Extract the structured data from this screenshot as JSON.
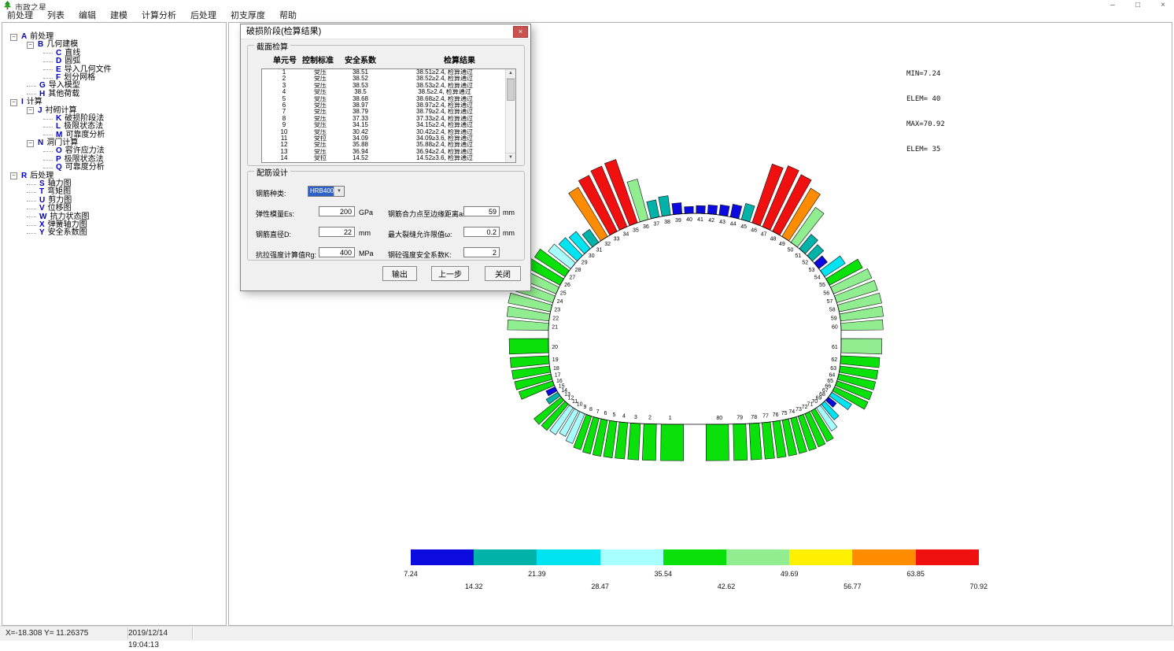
{
  "window": {
    "title": "市政之星",
    "controls": {
      "minimize": "–",
      "maximize": "□",
      "close": "×"
    }
  },
  "icons": {
    "dropdown": "▼",
    "scroll_up": "▲",
    "scroll_down": "▼",
    "tree_collapse": "−",
    "dialog_close": "×"
  },
  "menu": {
    "items": [
      "前处理",
      "列表",
      "编辑",
      "建模",
      "计算分析",
      "后处理",
      "初支厚度",
      "帮助"
    ]
  },
  "tree": {
    "items": [
      {
        "letter": "A",
        "label": "前处理",
        "children": [
          {
            "letter": "B",
            "label": "几何建模",
            "children": [
              {
                "letter": "C",
                "label": "直线"
              },
              {
                "letter": "D",
                "label": "圆弧"
              },
              {
                "letter": "E",
                "label": "导入几何文件"
              },
              {
                "letter": "F",
                "label": "划分网格"
              }
            ]
          },
          {
            "letter": "G",
            "label": "导入模型"
          },
          {
            "letter": "H",
            "label": "其他荷载"
          }
        ]
      },
      {
        "letter": "I",
        "label": "计算",
        "children": [
          {
            "letter": "J",
            "label": "衬砌计算",
            "children": [
              {
                "letter": "K",
                "label": "破损阶段法"
              },
              {
                "letter": "L",
                "label": "极限状态法"
              },
              {
                "letter": "M",
                "label": "可靠度分析"
              }
            ]
          },
          {
            "letter": "N",
            "label": "洞门计算",
            "children": [
              {
                "letter": "O",
                "label": "容许应力法"
              },
              {
                "letter": "P",
                "label": "极限状态法"
              },
              {
                "letter": "Q",
                "label": "可靠度分析"
              }
            ]
          }
        ]
      },
      {
        "letter": "R",
        "label": "后处理",
        "children": [
          {
            "letter": "S",
            "label": "轴力图"
          },
          {
            "letter": "T",
            "label": "弯矩图"
          },
          {
            "letter": "U",
            "label": "剪力图"
          },
          {
            "letter": "V",
            "label": "位移图"
          },
          {
            "letter": "W",
            "label": "抗力状态图"
          },
          {
            "letter": "X",
            "label": "弹簧轴力图"
          },
          {
            "letter": "Y",
            "label": "安全系数图"
          }
        ]
      }
    ]
  },
  "dialog": {
    "title": "破损阶段(检算结果)",
    "section_check": {
      "title": "截面检算",
      "columns": [
        "单元号",
        "控制标准",
        "安全系数",
        "检算结果"
      ],
      "rows": [
        [
          "1",
          "受压",
          "38.51",
          "38.51≥2.4, 检算通过"
        ],
        [
          "2",
          "受压",
          "38.52",
          "38.52≥2.4, 检算通过"
        ],
        [
          "3",
          "受压",
          "38.53",
          "38.53≥2.4, 检算通过"
        ],
        [
          "4",
          "受压",
          "38.5",
          "38.5≥2.4, 检算通过"
        ],
        [
          "5",
          "受压",
          "38.68",
          "38.68≥2.4, 检算通过"
        ],
        [
          "6",
          "受压",
          "38.97",
          "38.97≥2.4, 检算通过"
        ],
        [
          "7",
          "受压",
          "38.79",
          "38.79≥2.4, 检算通过"
        ],
        [
          "8",
          "受压",
          "37.33",
          "37.33≥2.4, 检算通过"
        ],
        [
          "9",
          "受压",
          "34.15",
          "34.15≥2.4, 检算通过"
        ],
        [
          "10",
          "受压",
          "30.42",
          "30.42≥2.4, 检算通过"
        ],
        [
          "11",
          "受拉",
          "34.09",
          "34.09≥3.6, 检算通过"
        ],
        [
          "12",
          "受压",
          "35.88",
          "35.88≥2.4, 检算通过"
        ],
        [
          "13",
          "受压",
          "36.94",
          "36.94≥2.4, 检算通过"
        ],
        [
          "14",
          "受拉",
          "14.52",
          "14.52≥3.6, 检算通过"
        ]
      ]
    },
    "section_design": {
      "title": "配筋设计",
      "fields": {
        "rebar_type": {
          "label": "钢筋种类:",
          "value": "HRB400"
        },
        "es": {
          "label": "弹性模量Es:",
          "value": "200",
          "unit": "GPa"
        },
        "as": {
          "label": "钢筋合力点至边缘距离as:",
          "value": "59",
          "unit": "mm"
        },
        "d": {
          "label": "钢筋直径D:",
          "value": "22",
          "unit": "mm"
        },
        "w": {
          "label": "最大裂缝允许限值ω:",
          "value": "0.2",
          "unit": "mm"
        },
        "rg": {
          "label": "抗拉强度计算值Rg:",
          "value": "400",
          "unit": "MPa"
        },
        "k": {
          "label": "钢砼强度安全系数K:",
          "value": "2",
          "unit": ""
        }
      },
      "buttons": {
        "export": "输出",
        "back": "上一步",
        "close": "关闭"
      }
    }
  },
  "canvas": {
    "annotations": [
      "MIN=7.24",
      "ELEM= 40",
      "MAX=70.92",
      "ELEM= 35"
    ]
  },
  "chart_data": {
    "type": "radial-bar tunnel-lining safety-factor diagram",
    "element_count": 80,
    "values": [
      38.51,
      38.52,
      38.53,
      38.5,
      38.68,
      38.97,
      38.79,
      37.33,
      34.15,
      30.42,
      34.09,
      35.88,
      36.94,
      14.52,
      10.5,
      37.6,
      39.3,
      40.2,
      40.9,
      41.6,
      43.4,
      44.9,
      45.8,
      46.3,
      45.1,
      41.9,
      38.4,
      30.2,
      26.4,
      23.8,
      16.9,
      60.8,
      66.5,
      69.6,
      70.92,
      44.3,
      18.4,
      20.6,
      11.8,
      7.24,
      8.2,
      9.4,
      10.9,
      13.7,
      17.6,
      65.8,
      70.1,
      67.3,
      59.6,
      45.4,
      19.8,
      16.2,
      11.4,
      26.1,
      39.6,
      43.8,
      45.3,
      46.1,
      45.6,
      44.4,
      43.2,
      41.1,
      40.4,
      39.8,
      39.2,
      38.9,
      24.6,
      10.8,
      21.6,
      29.4,
      36.8,
      37.9,
      38.3,
      38.4,
      38.6,
      38.7,
      38.6,
      38.5,
      38.5,
      38.5
    ],
    "min": {
      "label": "MIN=7.24",
      "value": 7.24,
      "element": 40
    },
    "max": {
      "label": "MAX=70.92",
      "value": 70.92,
      "element": 35
    },
    "colorbar": {
      "breaks": [
        "7.24",
        "14.32",
        "21.39",
        "28.47",
        "35.54",
        "42.62",
        "49.69",
        "56.77",
        "63.85",
        "70.92"
      ],
      "colors": [
        "#0b0be0",
        "#00b2a8",
        "#00e4f2",
        "#a8ffff",
        "#0ae00a",
        "#90ee90",
        "#fff000",
        "#ff8c00",
        "#f01010"
      ]
    }
  },
  "statusbar": {
    "coords": "X=-18.308  Y= 11.26375",
    "datetime": "2019/12/14 19:04:13"
  }
}
